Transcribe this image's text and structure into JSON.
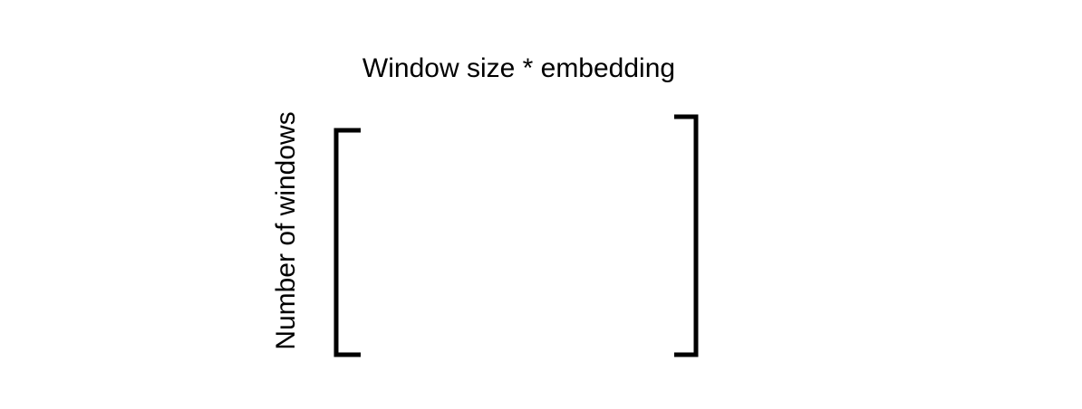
{
  "diagram": {
    "top_label": "Window size * embedding",
    "side_label": "Number of windows",
    "stroke_color": "#000000",
    "background_color": "#ffffff"
  }
}
